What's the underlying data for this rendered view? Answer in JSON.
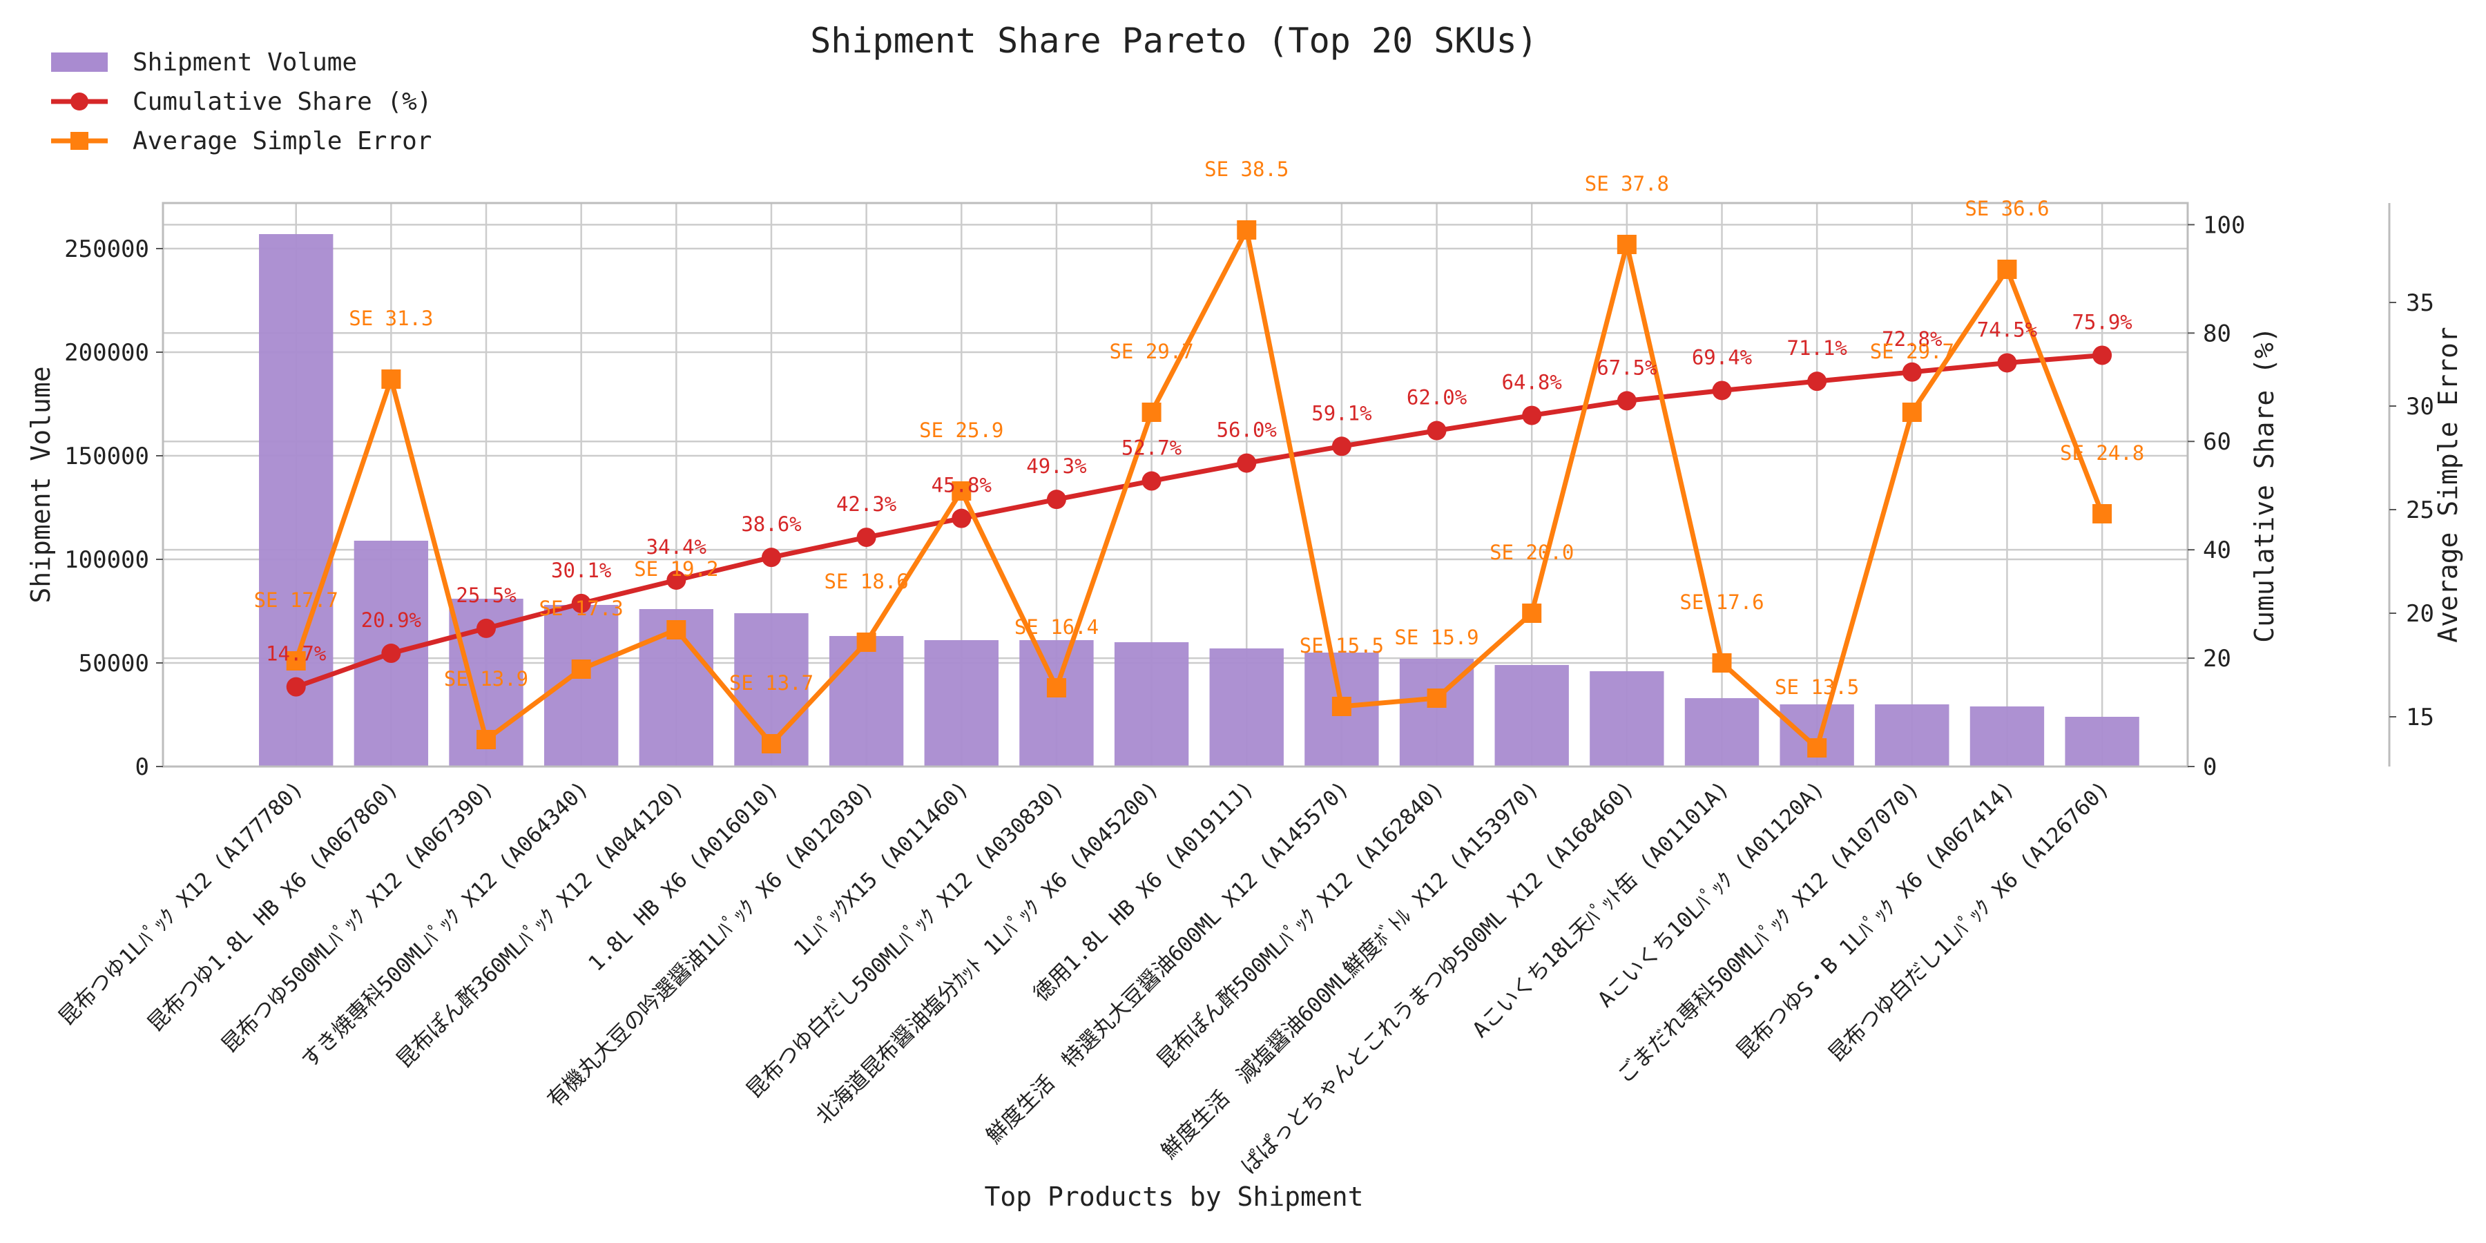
{
  "chart_data": {
    "type": "bar",
    "title": "Shipment Share Pareto (Top 20 SKUs)",
    "xlabel": "Top Products by Shipment",
    "ylabel": "Shipment Volume",
    "y2label": "Cumulative Share (%)",
    "y3label": "Average Simple Error",
    "ylim": [
      0,
      272000
    ],
    "y2lim": [
      0,
      104
    ],
    "y3lim": [
      12.6,
      39.8
    ],
    "y_ticks": [
      "0",
      "50000",
      "100000",
      "150000",
      "200000",
      "250000"
    ],
    "y2_ticks": [
      "0",
      "20",
      "40",
      "60",
      "80",
      "100"
    ],
    "y3_ticks": [
      "15",
      "20",
      "25",
      "30",
      "35"
    ],
    "grid": true,
    "legend_position": "top-left",
    "categories": [
      "昆布つゆ1Lﾊﾟｯｸ X12 (A177780)",
      "昆布つゆ1.8L HB X6 (A067860)",
      "昆布つゆ500MLﾊﾟｯｸ X12 (A067390)",
      "すき焼専科500MLﾊﾟｯｸ X12 (A064340)",
      "昆布ぽん酢360MLﾊﾟｯｸ X12 (A044120)",
      "1.8L HB X6 (A016010)",
      "有機丸大豆の吟選醤油1Lﾊﾟｯｸ X6 (A012030)",
      "1LﾊﾟｯｸX15 (A011460)",
      "昆布つゆ白だし500MLﾊﾟｯｸ X12 (A030830)",
      "北海道昆布醤油塩分ｶｯﾄ 1Lﾊﾟｯｸ X6 (A045200)",
      "徳用1.8L HB X6 (A01911J)",
      "鮮度生活　特選丸大豆醤油600ML X12 (A145570)",
      "昆布ぽん酢500MLﾊﾟｯｸ X12 (A162840)",
      "鮮度生活　減塩醤油600ML鮮度ﾎﾞﾄﾙ X12 (A153970)",
      "ぱぱっとちゃんとこれうまつゆ500ML X12 (A168460)",
      "Aこいくち18L天ﾊﾟｯﾄ缶 (A01101A)",
      "Aこいくち10Lﾊﾟｯｸ (A01120A)",
      "ごまだれ専科500MLﾊﾟｯｸ X12 (A107070)",
      "昆布つゆS・B 1Lﾊﾟｯｸ X6 (A067414)",
      "昆布つゆ白だし1Lﾊﾟｯｸ X6 (A126760)"
    ],
    "series": [
      {
        "name": "Shipment Volume",
        "type": "bar",
        "color": "#a98bd0",
        "values": [
          257000,
          109000,
          81000,
          78000,
          76000,
          74000,
          63000,
          61000,
          61000,
          60000,
          57000,
          55000,
          52000,
          49000,
          46000,
          33000,
          30000,
          30000,
          29000,
          24000
        ]
      },
      {
        "name": "Cumulative Share (%)",
        "type": "line",
        "color": "#d62728",
        "values": [
          14.7,
          20.9,
          25.5,
          30.1,
          34.4,
          38.6,
          42.3,
          45.8,
          49.3,
          52.7,
          56.0,
          59.1,
          62.0,
          64.8,
          67.5,
          69.4,
          71.1,
          72.8,
          74.5,
          75.9
        ],
        "labels": [
          "14.7%",
          "20.9%",
          "25.5%",
          "30.1%",
          "34.4%",
          "38.6%",
          "42.3%",
          "45.8%",
          "49.3%",
          "52.7%",
          "56.0%",
          "59.1%",
          "62.0%",
          "64.8%",
          "67.5%",
          "69.4%",
          "71.1%",
          "72.8%",
          "74.5%",
          "75.9%"
        ]
      },
      {
        "name": "Average Simple Error",
        "type": "line",
        "color": "#ff7f0e",
        "values": [
          17.7,
          31.3,
          13.9,
          17.3,
          19.2,
          13.7,
          18.6,
          25.9,
          16.4,
          29.7,
          38.5,
          15.5,
          15.9,
          20.0,
          37.8,
          17.6,
          13.5,
          29.7,
          36.6,
          24.8
        ],
        "labels": [
          "SE 17.7",
          "SE 31.3",
          "SE 13.9",
          "SE 17.3",
          "SE 19.2",
          "SE 13.7",
          "SE 18.6",
          "SE 25.9",
          "SE 16.4",
          "SE 29.7",
          "SE 38.5",
          "SE 15.5",
          "SE 15.9",
          "SE 20.0",
          "SE 37.8",
          "SE 17.6",
          "SE 13.5",
          "SE 29.7",
          "SE 36.6",
          "SE 24.8"
        ]
      }
    ]
  }
}
